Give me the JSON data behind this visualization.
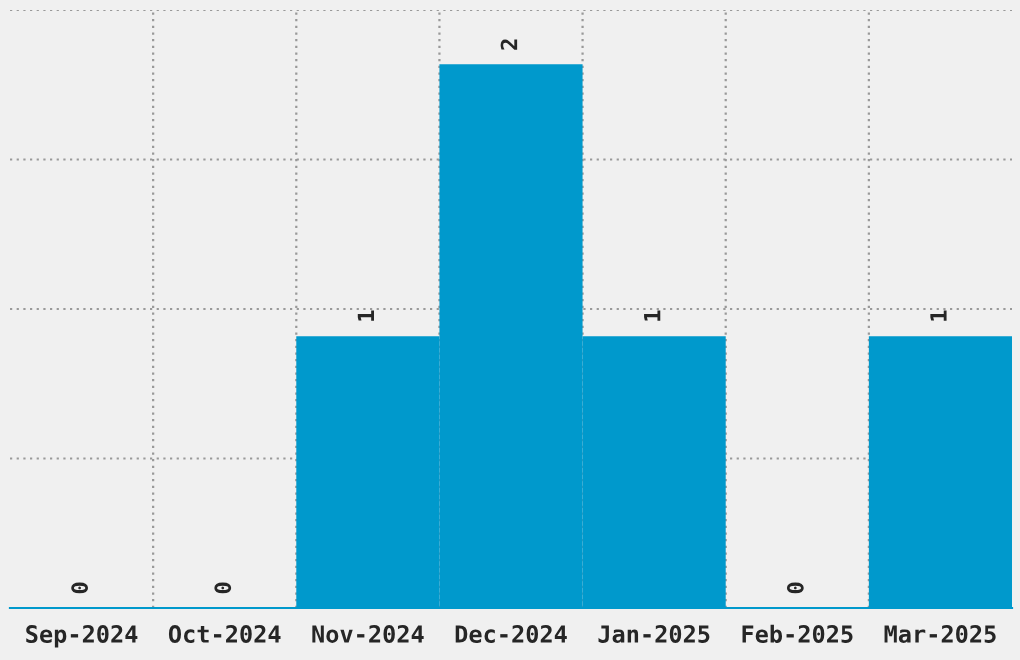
{
  "chart_data": {
    "type": "bar",
    "categories": [
      "Sep-2024",
      "Oct-2024",
      "Nov-2024",
      "Dec-2024",
      "Jan-2025",
      "Feb-2025",
      "Mar-2025"
    ],
    "values": [
      0,
      0,
      1,
      2,
      1,
      0,
      1
    ],
    "color": "#0099cc",
    "ylim": [
      0,
      2.2
    ],
    "yticks": [
      {
        "value": 0.55,
        "label": null
      },
      {
        "value": 1.1,
        "label": null
      },
      {
        "value": 1.65,
        "label": null
      },
      {
        "value": 2.2,
        "label": null
      }
    ],
    "tick_labels": "x",
    "grid": true,
    "data_labels": true
  }
}
